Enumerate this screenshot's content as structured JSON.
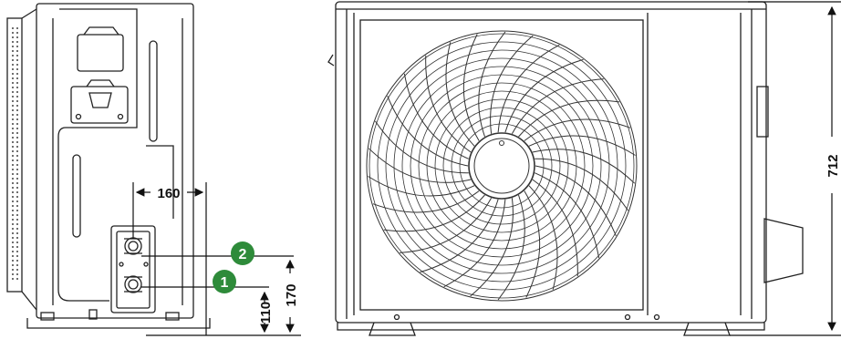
{
  "dimensions": {
    "width_label": "160",
    "height_small_label": "110",
    "height_large_label": "170",
    "total_height_label": "712"
  },
  "callouts": [
    {
      "label": "2",
      "color": "#2e8b3a"
    },
    {
      "label": "1",
      "color": "#2e8b3a"
    }
  ],
  "colors": {
    "line": "#222222",
    "badge": "#2e8b3a"
  }
}
